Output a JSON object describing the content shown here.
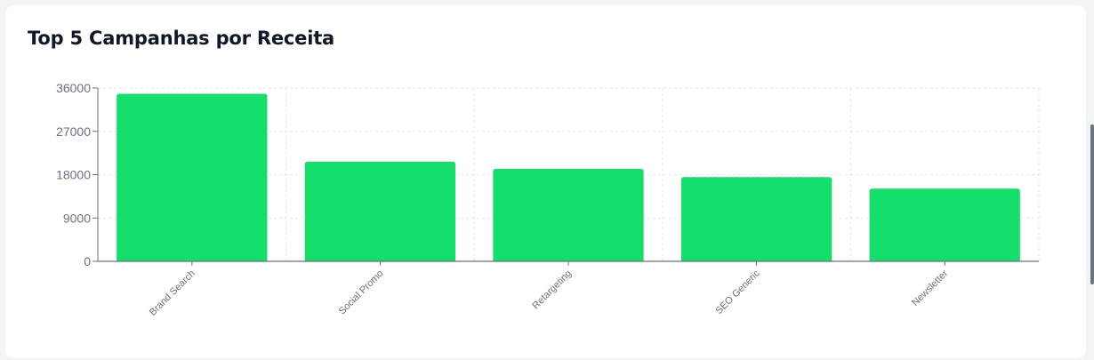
{
  "card": {
    "title": "Top 5 Campanhas por Receita"
  },
  "colors": {
    "bar": "#13df6a",
    "grid": "#e5e7eb",
    "axis": "#6b7280",
    "tick_text": "#6b7280"
  },
  "chart_data": {
    "type": "bar",
    "categories": [
      "Brand Search",
      "Social Promo",
      "Retargeting",
      "SEO Generic",
      "Newsletter"
    ],
    "values": [
      34800,
      20700,
      19200,
      17500,
      15100
    ],
    "title": "Top 5 Campanhas por Receita",
    "xlabel": "",
    "ylabel": "",
    "ylim": [
      0,
      36000
    ],
    "yticks": [
      0,
      9000,
      18000,
      27000,
      36000
    ],
    "grid": true,
    "legend": "none"
  }
}
